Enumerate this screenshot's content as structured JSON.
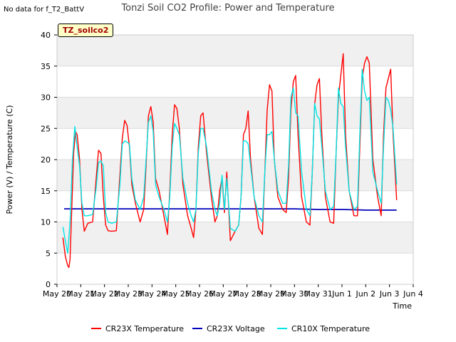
{
  "corner_note": "No data for f_T2_BattV",
  "badge": "TZ_soilco2",
  "chart_data": {
    "type": "line",
    "title": "Tonzi Soil CO2 Profile: Power and Temperature",
    "xlabel": "Time",
    "ylabel": "Power (V) / Temperature (C)",
    "ylim": [
      0,
      40
    ],
    "yticks": [
      0,
      5,
      10,
      15,
      20,
      25,
      30,
      35,
      40
    ],
    "xlim": [
      0,
      15
    ],
    "xtick_labels": [
      "May 20",
      "May 21",
      "May 22",
      "May 23",
      "May 24",
      "May 25",
      "May 26",
      "May 27",
      "May 28",
      "May 29",
      "May 30",
      "May 31",
      "Jun 1",
      "Jun 2",
      "Jun 3",
      "Jun 4"
    ],
    "x_unit": "days since May 20",
    "grid": true,
    "legend_position": "bottom",
    "series": [
      {
        "name": "CR23X Temperature",
        "color": "#ff0000",
        "x": [
          0.25,
          0.35,
          0.45,
          0.5,
          0.55,
          0.62,
          0.7,
          0.78,
          0.85,
          0.95,
          1.05,
          1.15,
          1.3,
          1.5,
          1.65,
          1.75,
          1.85,
          1.95,
          2.05,
          2.15,
          2.3,
          2.5,
          2.65,
          2.75,
          2.85,
          2.95,
          3.05,
          3.15,
          3.3,
          3.5,
          3.65,
          3.75,
          3.85,
          3.95,
          4.05,
          4.15,
          4.3,
          4.5,
          4.65,
          4.75,
          4.85,
          4.95,
          5.05,
          5.15,
          5.3,
          5.5,
          5.65,
          5.75,
          5.85,
          5.95,
          6.05,
          6.15,
          6.3,
          6.5,
          6.65,
          6.75,
          6.85,
          6.95,
          7.05,
          7.15,
          7.3,
          7.5,
          7.65,
          7.75,
          7.85,
          7.95,
          8.05,
          8.15,
          8.3,
          8.5,
          8.65,
          8.75,
          8.85,
          8.95,
          9.05,
          9.15,
          9.3,
          9.5,
          9.65,
          9.75,
          9.85,
          9.95,
          10.05,
          10.15,
          10.3,
          10.5,
          10.65,
          10.75,
          10.85,
          10.95,
          11.05,
          11.15,
          11.3,
          11.5,
          11.65,
          11.75,
          11.85,
          11.95,
          12.05,
          12.15,
          12.3,
          12.5,
          12.65,
          12.75,
          12.85,
          12.95,
          13.05,
          13.15,
          13.3,
          13.5,
          13.65,
          13.75,
          13.85,
          13.95,
          14.05,
          14.15,
          14.3
        ],
        "y": [
          7.5,
          4.5,
          3.0,
          2.7,
          4.0,
          12.0,
          21.0,
          24.5,
          24.0,
          20.0,
          12.0,
          8.5,
          9.8,
          10.0,
          17.0,
          21.5,
          21.0,
          14.0,
          9.5,
          8.6,
          8.5,
          8.6,
          17.5,
          23.5,
          26.3,
          25.5,
          22.0,
          16.0,
          13.0,
          10.0,
          12.0,
          19.0,
          27.0,
          28.5,
          26.0,
          17.0,
          15.0,
          11.0,
          8.0,
          15.0,
          24.0,
          28.8,
          28.2,
          25.0,
          16.0,
          11.0,
          9.0,
          7.5,
          12.0,
          22.0,
          27.0,
          27.5,
          21.0,
          14.0,
          10.0,
          11.0,
          15.0,
          17.0,
          11.5,
          18.0,
          7.0,
          8.5,
          9.5,
          14.0,
          24.0,
          25.0,
          27.8,
          20.0,
          14.0,
          9.0,
          8.0,
          18.0,
          28.0,
          32.0,
          31.0,
          20.0,
          14.0,
          12.0,
          11.5,
          17.0,
          28.0,
          32.5,
          33.5,
          24.0,
          14.0,
          10.0,
          9.5,
          18.0,
          29.0,
          32.0,
          33.0,
          24.0,
          14.0,
          10.0,
          9.8,
          21.0,
          30.0,
          33.5,
          37.0,
          24.0,
          15.0,
          11.0,
          11.0,
          22.0,
          33.0,
          35.5,
          36.5,
          35.5,
          20.0,
          14.0,
          11.0,
          24.0,
          31.5,
          33.0,
          34.5,
          24.0,
          13.5
        ]
      },
      {
        "name": "CR23X Voltage",
        "color": "#0000bb",
        "x": [
          0.3,
          2.0,
          4.0,
          6.0,
          8.0,
          10.0,
          11.0,
          12.0,
          13.0,
          14.3
        ],
        "y": [
          12.1,
          12.1,
          12.1,
          12.1,
          12.1,
          12.1,
          12.0,
          12.0,
          11.9,
          11.9
        ]
      },
      {
        "name": "CR10X Temperature",
        "color": "#00e5e5",
        "x": [
          0.25,
          0.35,
          0.45,
          0.55,
          0.65,
          0.75,
          0.85,
          0.95,
          1.05,
          1.15,
          1.3,
          1.5,
          1.65,
          1.75,
          1.85,
          1.95,
          2.05,
          2.15,
          2.3,
          2.5,
          2.65,
          2.75,
          2.85,
          2.95,
          3.05,
          3.15,
          3.3,
          3.5,
          3.65,
          3.75,
          3.85,
          3.95,
          4.05,
          4.15,
          4.3,
          4.5,
          4.65,
          4.75,
          4.85,
          4.95,
          5.05,
          5.15,
          5.3,
          5.5,
          5.65,
          5.75,
          5.85,
          5.95,
          6.05,
          6.15,
          6.3,
          6.5,
          6.65,
          6.75,
          6.85,
          6.95,
          7.05,
          7.15,
          7.3,
          7.5,
          7.65,
          7.75,
          7.85,
          7.95,
          8.05,
          8.15,
          8.3,
          8.5,
          8.65,
          8.75,
          8.85,
          8.95,
          9.05,
          9.15,
          9.3,
          9.5,
          9.65,
          9.75,
          9.85,
          9.95,
          10.05,
          10.15,
          10.3,
          10.5,
          10.65,
          10.75,
          10.85,
          10.95,
          11.05,
          11.15,
          11.3,
          11.5,
          11.65,
          11.75,
          11.85,
          11.95,
          12.05,
          12.15,
          12.3,
          12.5,
          12.65,
          12.75,
          12.85,
          12.95,
          13.05,
          13.15,
          13.3,
          13.5,
          13.65,
          13.75,
          13.85,
          13.95,
          14.05,
          14.15,
          14.3
        ],
        "y": [
          9.2,
          7.0,
          5.0,
          10.0,
          20.0,
          25.3,
          22.0,
          19.0,
          13.0,
          11.0,
          11.0,
          11.2,
          15.5,
          19.5,
          19.8,
          19.0,
          11.5,
          10.0,
          9.8,
          10.0,
          16.0,
          22.5,
          23.0,
          22.8,
          22.5,
          17.0,
          13.5,
          12.0,
          14.0,
          20.0,
          26.0,
          27.0,
          24.5,
          16.0,
          14.0,
          12.0,
          10.0,
          14.0,
          22.0,
          25.8,
          25.0,
          24.0,
          17.0,
          13.0,
          11.0,
          10.0,
          12.0,
          21.0,
          25.0,
          25.0,
          22.0,
          15.0,
          12.0,
          11.0,
          13.0,
          17.5,
          12.0,
          17.0,
          9.0,
          8.5,
          9.5,
          14.0,
          23.0,
          23.0,
          22.5,
          19.0,
          14.0,
          11.0,
          10.0,
          18.0,
          24.0,
          24.0,
          24.5,
          20.0,
          15.0,
          13.0,
          13.0,
          19.0,
          30.0,
          31.5,
          27.5,
          27.0,
          18.0,
          12.0,
          11.0,
          18.0,
          29.0,
          27.0,
          26.5,
          22.0,
          15.0,
          12.0,
          12.5,
          21.0,
          31.5,
          29.0,
          28.5,
          22.0,
          15.0,
          12.0,
          12.5,
          24.0,
          34.5,
          31.0,
          29.5,
          30.0,
          18.0,
          15.0,
          13.0,
          22.0,
          30.0,
          29.5,
          28.0,
          25.0,
          16.0
        ]
      }
    ]
  }
}
